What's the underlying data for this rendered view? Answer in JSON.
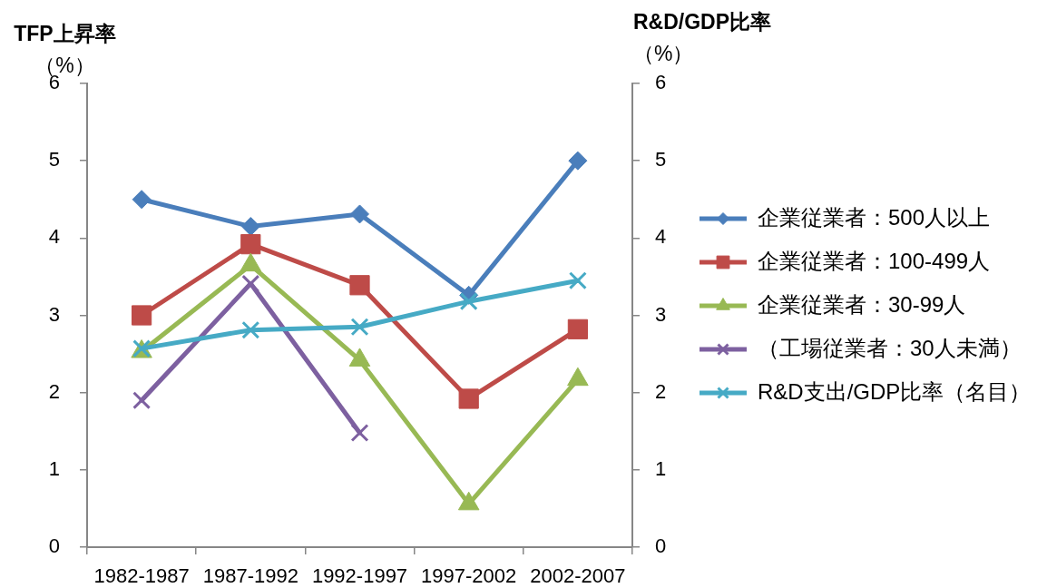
{
  "chart_data": {
    "type": "line",
    "categories": [
      "1982-1987",
      "1987-1992",
      "1992-1997",
      "1997-2002",
      "2002-2007"
    ],
    "ylabel": "TFP上昇率（%）",
    "y2label": "R&D/GDP比率（%）",
    "ylim": [
      0,
      6
    ],
    "yticks": [
      0,
      1,
      2,
      3,
      4,
      5,
      6
    ],
    "y2lim": [
      0,
      6
    ],
    "y2ticks": [
      0,
      1,
      2,
      3,
      4,
      5,
      6
    ],
    "grid": false,
    "legend": "right",
    "line_style": "solid",
    "series": [
      {
        "name": "企業従業者：500人以上",
        "color": "#4a7ebb",
        "marker": "diamond",
        "values": [
          4.5,
          4.15,
          4.31,
          3.26,
          5.0
        ]
      },
      {
        "name": "企業従業者：100-499人",
        "color": "#be4b48",
        "marker": "square",
        "values": [
          3.0,
          3.92,
          3.39,
          1.92,
          2.82
        ]
      },
      {
        "name": "企業従業者：30-99人",
        "color": "#98b954",
        "marker": "triangle",
        "values": [
          2.53,
          3.65,
          2.42,
          0.56,
          2.17
        ]
      },
      {
        "name": "（工場従業者：30人未満）",
        "color": "#7d60a0",
        "marker": "cross",
        "values": [
          1.9,
          3.41,
          1.48,
          null,
          null
        ]
      },
      {
        "name": "R&D支出/GDP比率（名目）",
        "color": "#46aac5",
        "marker": "cross",
        "values": [
          2.57,
          2.81,
          2.85,
          3.18,
          3.45
        ]
      }
    ]
  }
}
